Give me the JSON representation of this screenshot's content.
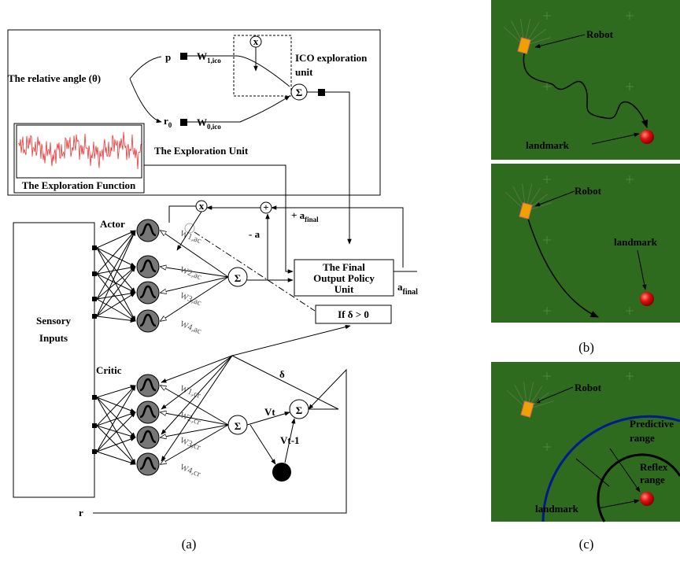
{
  "panel_a": {
    "exploration_unit": {
      "input": "The relative angle (θ)",
      "p": "p",
      "w1": {
        "main": "W",
        "sub": "1,ico"
      },
      "r0": {
        "main": "r",
        "sub": "0"
      },
      "w0": {
        "main": "W",
        "sub": "0,ico"
      },
      "multiply": "x",
      "sum": "Σ",
      "ico_label": [
        "ICO exploration",
        "unit"
      ],
      "title": "The Exploration Unit",
      "function_label": "The Exploration Function"
    },
    "sensory_inputs": [
      "Sensory",
      "Inputs"
    ],
    "actor": "Actor",
    "critic": "Critic",
    "actor_weights": [
      "W1,ac",
      "W2,ac",
      "W3,ac",
      "W4,ac"
    ],
    "critic_weights": [
      "W1,cr",
      "W2,cr",
      "W3,cr",
      "W4,cr"
    ],
    "actor_multiply": "x",
    "plus": "+",
    "actor_sum": "Σ",
    "critic_sum": "Σ",
    "td_sum": "Σ",
    "minus_a": "- a",
    "plus_a_final": {
      "main": "+ a",
      "sub": "final"
    },
    "final_unit": [
      "The Final",
      "Output Policy",
      "Unit"
    ],
    "a_final": {
      "main": "a",
      "sub": "final"
    },
    "condition": "If δ > 0",
    "delta": "δ",
    "vt": "Vt",
    "vt1": "Vt-1",
    "r": "r",
    "caption": "(a)"
  },
  "panel_b": {
    "top": {
      "robot": "Robot",
      "landmark": "landmark"
    },
    "bottom": {
      "robot": "Robot",
      "landmark": "landmark"
    },
    "caption": "(b)"
  },
  "panel_c": {
    "robot": "Robot",
    "predictive": [
      "Predictive",
      "range"
    ],
    "reflex": [
      "Reflex",
      "range"
    ],
    "landmark": "landmark",
    "caption": "(c)"
  }
}
